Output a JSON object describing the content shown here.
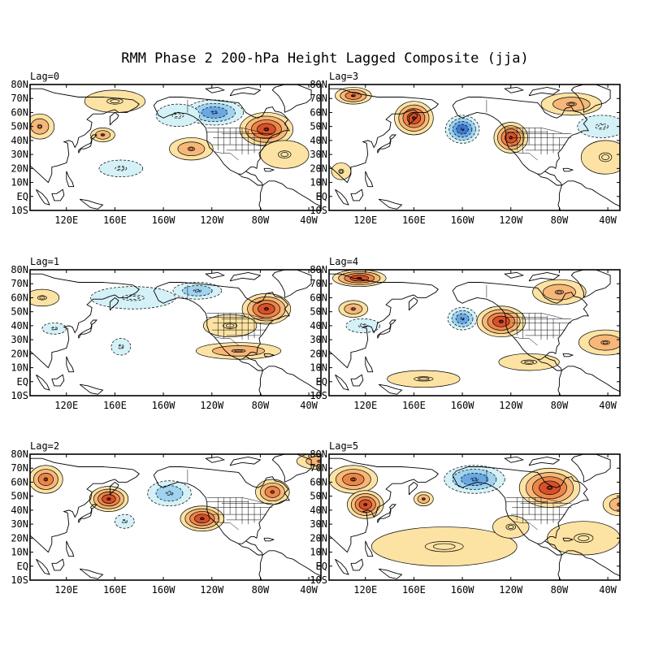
{
  "title": "RMM Phase 2 200-hPa Height Lagged Composite (jja)",
  "lat_labels": [
    "80N",
    "70N",
    "60N",
    "50N",
    "40N",
    "30N",
    "20N",
    "10N",
    "EQ",
    "10S"
  ],
  "lon_labels": [
    "120E",
    "160E",
    "160W",
    "120W",
    "80W",
    "40W"
  ],
  "colors": {
    "pos1": "#fde3a3",
    "pos2": "#f7b779",
    "pos3": "#ec8548",
    "pos4": "#d8502a",
    "neg1": "#d4f1f7",
    "neg2": "#9fd3ef",
    "neg3": "#6aa8e4",
    "neg4": "#3d79d0"
  },
  "panels": [
    {
      "label": "Lag=0",
      "anomalies": [
        {
          "lon": 98,
          "lat": 50,
          "rx": 12,
          "ry": 9,
          "level": 2
        },
        {
          "lon": 150,
          "lat": 44,
          "rx": 10,
          "ry": 5,
          "level": 2
        },
        {
          "lon": 160,
          "lat": 68,
          "rx": 25,
          "ry": 8,
          "level": 1
        },
        {
          "lon": 242,
          "lat": 60,
          "rx": 24,
          "ry": 9,
          "level": -3
        },
        {
          "lon": 212,
          "lat": 58,
          "rx": 18,
          "ry": 8,
          "level": -1
        },
        {
          "lon": 285,
          "lat": 48,
          "rx": 22,
          "ry": 12,
          "level": 4
        },
        {
          "lon": 223,
          "lat": 34,
          "rx": 18,
          "ry": 8,
          "level": 2
        },
        {
          "lon": 165,
          "lat": 20,
          "rx": 18,
          "ry": 6,
          "level": -1
        },
        {
          "lon": 300,
          "lat": 30,
          "rx": 20,
          "ry": 10,
          "level": 1
        }
      ]
    },
    {
      "label": "Lag=3",
      "anomalies": [
        {
          "lon": 110,
          "lat": 72,
          "rx": 15,
          "ry": 6,
          "level": 3
        },
        {
          "lon": 160,
          "lat": 56,
          "rx": 16,
          "ry": 12,
          "level": 4
        },
        {
          "lon": 200,
          "lat": 48,
          "rx": 14,
          "ry": 10,
          "level": -4
        },
        {
          "lon": 240,
          "lat": 42,
          "rx": 14,
          "ry": 11,
          "level": 4
        },
        {
          "lon": 290,
          "lat": 66,
          "rx": 25,
          "ry": 8,
          "level": 2
        },
        {
          "lon": 315,
          "lat": 50,
          "rx": 20,
          "ry": 8,
          "level": -1
        },
        {
          "lon": 318,
          "lat": 28,
          "rx": 20,
          "ry": 12,
          "level": 1
        },
        {
          "lon": 100,
          "lat": 18,
          "rx": 8,
          "ry": 6,
          "level": 1
        }
      ]
    },
    {
      "label": "Lag=1",
      "anomalies": [
        {
          "lon": 100,
          "lat": 60,
          "rx": 14,
          "ry": 6,
          "level": 1
        },
        {
          "lon": 175,
          "lat": 60,
          "rx": 35,
          "ry": 8,
          "level": -1
        },
        {
          "lon": 228,
          "lat": 65,
          "rx": 20,
          "ry": 6,
          "level": -2
        },
        {
          "lon": 285,
          "lat": 52,
          "rx": 20,
          "ry": 11,
          "level": 4
        },
        {
          "lon": 255,
          "lat": 40,
          "rx": 22,
          "ry": 8,
          "level": 1
        },
        {
          "lon": 262,
          "lat": 22,
          "rx": 35,
          "ry": 6,
          "level": 2
        },
        {
          "lon": 165,
          "lat": 25,
          "rx": 8,
          "ry": 6,
          "level": -1
        },
        {
          "lon": 110,
          "lat": 38,
          "rx": 10,
          "ry": 4,
          "level": -1
        }
      ]
    },
    {
      "label": "Lag=4",
      "anomalies": [
        {
          "lon": 115,
          "lat": 74,
          "rx": 22,
          "ry": 6,
          "level": 4
        },
        {
          "lon": 110,
          "lat": 52,
          "rx": 12,
          "ry": 6,
          "level": 2
        },
        {
          "lon": 118,
          "lat": 40,
          "rx": 14,
          "ry": 5,
          "level": -1
        },
        {
          "lon": 200,
          "lat": 45,
          "rx": 12,
          "ry": 8,
          "level": -3
        },
        {
          "lon": 232,
          "lat": 43,
          "rx": 20,
          "ry": 11,
          "level": 4
        },
        {
          "lon": 280,
          "lat": 64,
          "rx": 22,
          "ry": 9,
          "level": 2
        },
        {
          "lon": 318,
          "lat": 28,
          "rx": 22,
          "ry": 9,
          "level": 2
        },
        {
          "lon": 168,
          "lat": 2,
          "rx": 30,
          "ry": 6,
          "level": 1
        },
        {
          "lon": 255,
          "lat": 14,
          "rx": 25,
          "ry": 6,
          "level": 1
        }
      ]
    },
    {
      "label": "Lag=2",
      "anomalies": [
        {
          "lon": 103,
          "lat": 62,
          "rx": 14,
          "ry": 10,
          "level": 3
        },
        {
          "lon": 155,
          "lat": 48,
          "rx": 16,
          "ry": 9,
          "level": 4
        },
        {
          "lon": 205,
          "lat": 52,
          "rx": 18,
          "ry": 9,
          "level": -2
        },
        {
          "lon": 232,
          "lat": 34,
          "rx": 18,
          "ry": 9,
          "level": 4
        },
        {
          "lon": 290,
          "lat": 53,
          "rx": 14,
          "ry": 9,
          "level": 3
        },
        {
          "lon": 330,
          "lat": 75,
          "rx": 20,
          "ry": 6,
          "level": 2
        },
        {
          "lon": 168,
          "lat": 32,
          "rx": 8,
          "ry": 5,
          "level": -1
        }
      ]
    },
    {
      "label": "Lag=5",
      "anomalies": [
        {
          "lon": 110,
          "lat": 62,
          "rx": 20,
          "ry": 10,
          "level": 3
        },
        {
          "lon": 120,
          "lat": 44,
          "rx": 15,
          "ry": 10,
          "level": 4
        },
        {
          "lon": 210,
          "lat": 62,
          "rx": 25,
          "ry": 10,
          "level": -3
        },
        {
          "lon": 272,
          "lat": 56,
          "rx": 25,
          "ry": 14,
          "level": 4
        },
        {
          "lon": 330,
          "lat": 44,
          "rx": 14,
          "ry": 8,
          "level": 2
        },
        {
          "lon": 185,
          "lat": 14,
          "rx": 60,
          "ry": 14,
          "level": 1
        },
        {
          "lon": 300,
          "lat": 20,
          "rx": 30,
          "ry": 12,
          "level": 1
        },
        {
          "lon": 168,
          "lat": 48,
          "rx": 8,
          "ry": 5,
          "level": 2
        },
        {
          "lon": 240,
          "lat": 28,
          "rx": 15,
          "ry": 8,
          "level": 1
        }
      ]
    }
  ]
}
